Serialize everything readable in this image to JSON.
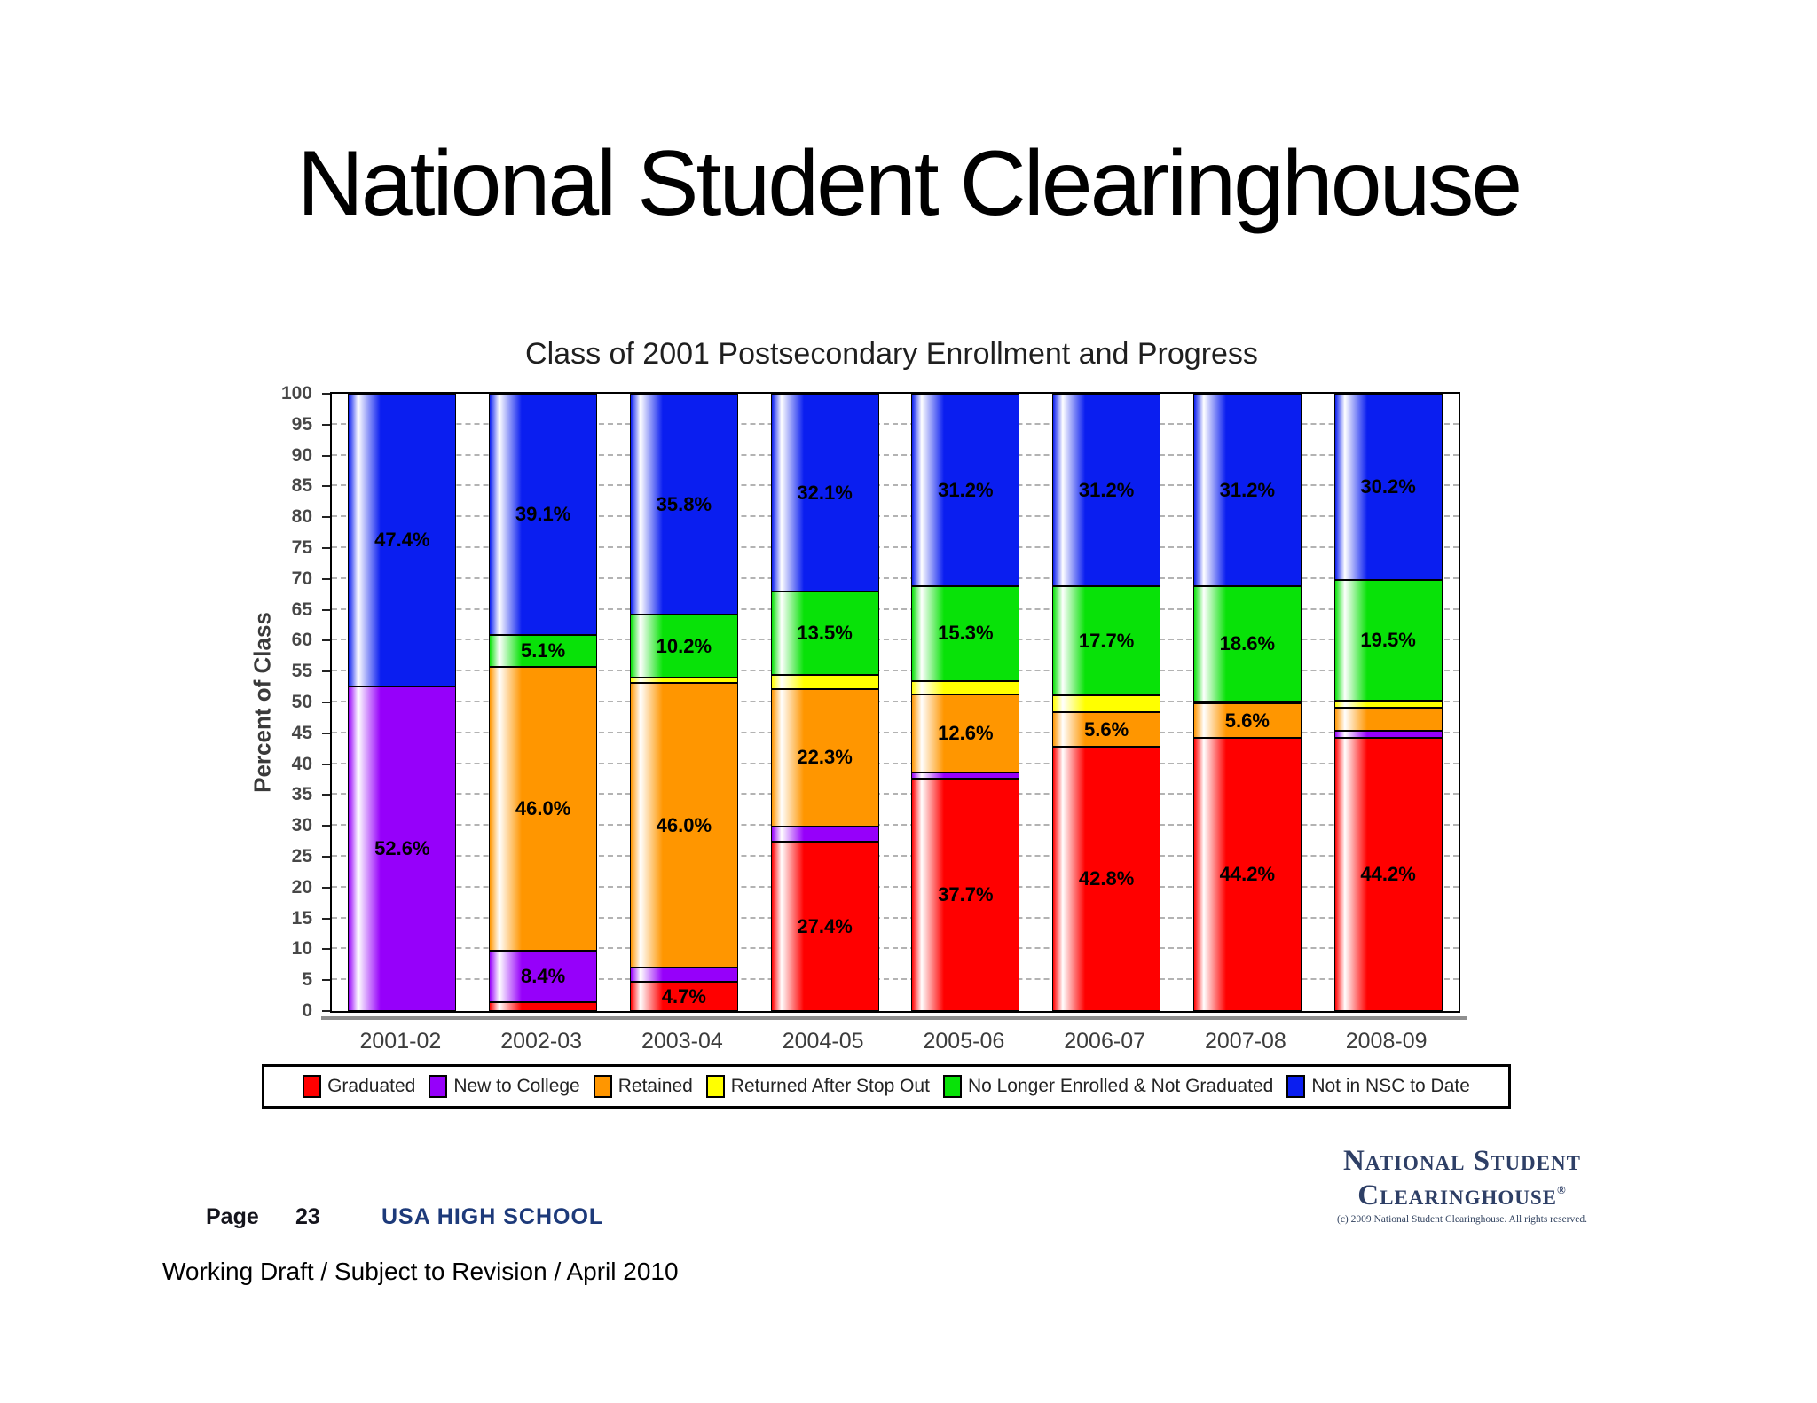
{
  "slide": {
    "title": "National Student Clearinghouse",
    "footer": {
      "page_label": "Page",
      "page_number": "23",
      "school": "USA HIGH SCHOOL",
      "draft_note": "Working Draft / Subject to Revision / April 2010"
    },
    "logo": {
      "line1": "National Student",
      "line2": "Clearinghouse",
      "registered_mark": "®",
      "copyright": "(c) 2009 National Student Clearinghouse. All rights reserved."
    }
  },
  "chart_data": {
    "type": "bar",
    "stacked": true,
    "title": "Class of 2001 Postsecondary Enrollment and Progress",
    "xlabel": "",
    "ylabel": "Percent of Class",
    "ylim": [
      0,
      100
    ],
    "ytick_step": 5,
    "grid": "dashed horizontal lines every 5",
    "legend_position": "bottom",
    "categories": [
      "2001-02",
      "2002-03",
      "2003-04",
      "2004-05",
      "2005-06",
      "2006-07",
      "2007-08",
      "2008-09"
    ],
    "series": [
      {
        "name": "Graduated",
        "color": "#ff0000",
        "values": [
          0,
          1.4,
          4.7,
          27.4,
          37.7,
          42.8,
          44.2,
          44.2
        ],
        "labels": [
          null,
          null,
          "4.7%",
          "27.4%",
          "37.7%",
          "42.8%",
          "44.2%",
          "44.2%"
        ]
      },
      {
        "name": "New to College",
        "color": "#9600fa",
        "values": [
          52.6,
          8.4,
          2.4,
          2.5,
          1.0,
          0,
          0,
          1.2
        ],
        "labels": [
          "52.6%",
          "8.4%",
          null,
          null,
          null,
          null,
          null,
          null
        ]
      },
      {
        "name": "Retained",
        "color": "#ff9600",
        "values": [
          0,
          46.0,
          46.0,
          22.3,
          12.6,
          5.6,
          5.6,
          3.7
        ],
        "labels": [
          null,
          "46.0%",
          "46.0%",
          "22.3%",
          "12.6%",
          "5.6%",
          "5.6%",
          null
        ]
      },
      {
        "name": "Returned After Stop Out",
        "color": "#ffff00",
        "values": [
          0,
          0,
          0.9,
          2.2,
          2.2,
          2.7,
          0.4,
          1.2
        ],
        "labels": [
          null,
          null,
          null,
          null,
          null,
          null,
          null,
          null
        ]
      },
      {
        "name": "No Longer Enrolled & Not Graduated",
        "color": "#08e208",
        "values": [
          0,
          5.1,
          10.2,
          13.5,
          15.3,
          17.7,
          18.6,
          19.5
        ],
        "labels": [
          null,
          "5.1%",
          "10.2%",
          "13.5%",
          "15.3%",
          "17.7%",
          "18.6%",
          "19.5%"
        ]
      },
      {
        "name": "Not in NSC to Date",
        "color": "#0a1ef0",
        "values": [
          47.4,
          39.1,
          35.8,
          32.1,
          31.2,
          31.2,
          31.2,
          30.2
        ],
        "labels": [
          "47.4%",
          "39.1%",
          "35.8%",
          "32.1%",
          "31.2%",
          "31.2%",
          "31.2%",
          "30.2%"
        ]
      }
    ]
  }
}
